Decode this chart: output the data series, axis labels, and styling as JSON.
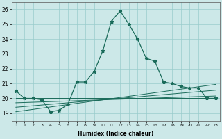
{
  "xlabel": "Humidex (Indice chaleur)",
  "xlim": [
    -0.5,
    23.5
  ],
  "ylim": [
    18.5,
    26.5
  ],
  "yticks": [
    19,
    20,
    21,
    22,
    23,
    24,
    25,
    26
  ],
  "xticks": [
    0,
    1,
    2,
    3,
    4,
    5,
    6,
    7,
    8,
    9,
    10,
    11,
    12,
    13,
    14,
    15,
    16,
    17,
    18,
    19,
    20,
    21,
    22,
    23
  ],
  "background_color": "#cce8e8",
  "grid_color": "#99cccc",
  "line_color": "#1a6b5a",
  "main_line": [
    20.5,
    20.0,
    20.0,
    19.9,
    19.1,
    19.2,
    19.6,
    21.1,
    21.1,
    21.8,
    23.2,
    25.2,
    25.9,
    25.0,
    24.0,
    22.7,
    22.5,
    21.1,
    21.0,
    20.8,
    20.7,
    20.7,
    20.0,
    20.0
  ],
  "flat_line": [
    20.0,
    20.0,
    20.0,
    20.0,
    20.0,
    20.0,
    20.0,
    20.0,
    20.0,
    20.0,
    20.0,
    20.0,
    20.0,
    20.0,
    20.0,
    20.0,
    20.0,
    20.0,
    20.0,
    20.0,
    20.0,
    20.0,
    20.0,
    20.0
  ],
  "diag_line1": [
    19.7,
    19.72,
    19.74,
    19.76,
    19.78,
    19.8,
    19.82,
    19.84,
    19.86,
    19.88,
    19.9,
    19.92,
    19.94,
    19.96,
    19.98,
    20.0,
    20.02,
    20.04,
    20.06,
    20.08,
    20.1,
    20.12,
    20.14,
    20.16
  ],
  "diag_line2": [
    19.4,
    19.45,
    19.5,
    19.55,
    19.6,
    19.65,
    19.7,
    19.75,
    19.8,
    19.85,
    19.9,
    19.95,
    20.0,
    20.05,
    20.1,
    20.15,
    20.2,
    20.25,
    20.3,
    20.35,
    20.4,
    20.45,
    20.5,
    20.55
  ],
  "diag_line3": [
    19.1,
    19.18,
    19.26,
    19.34,
    19.42,
    19.5,
    19.58,
    19.66,
    19.74,
    19.82,
    19.9,
    19.98,
    20.06,
    20.14,
    20.22,
    20.3,
    20.38,
    20.46,
    20.54,
    20.62,
    20.7,
    20.78,
    20.86,
    20.94
  ],
  "figsize": [
    3.2,
    2.0
  ],
  "dpi": 100
}
